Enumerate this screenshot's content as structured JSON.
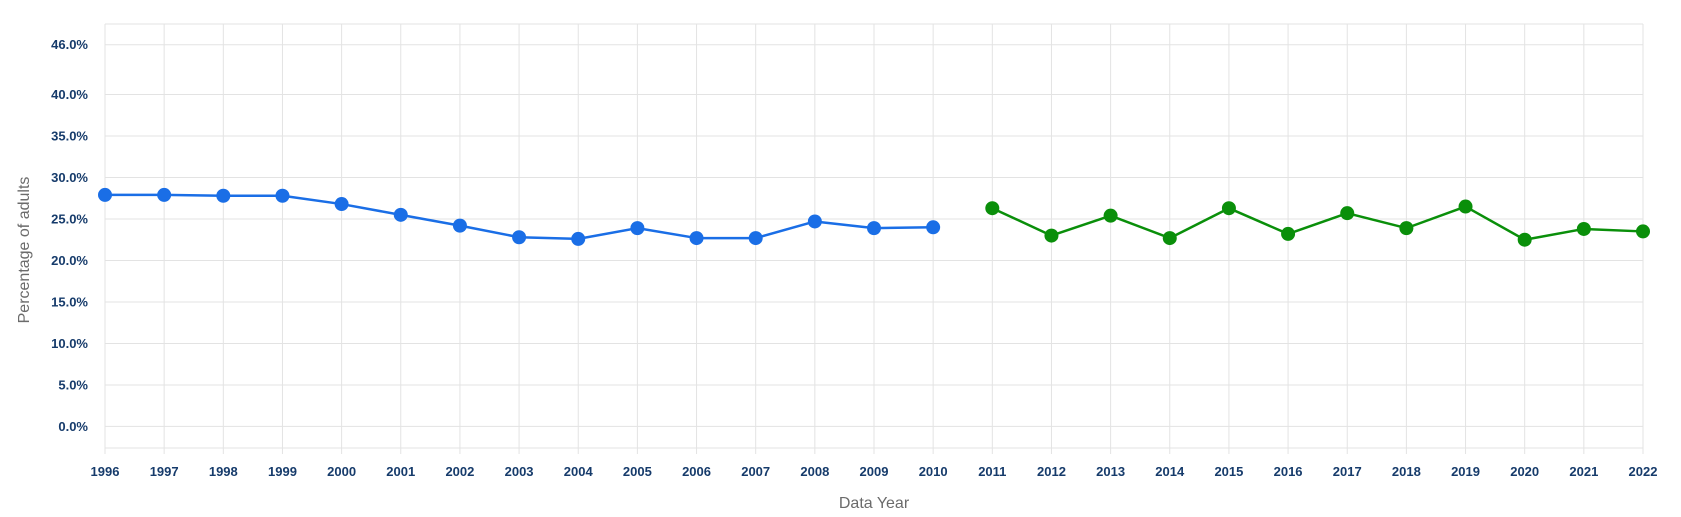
{
  "chart_data": {
    "type": "line",
    "xlabel": "Data Year",
    "ylabel": "Percentage of adults",
    "x": [
      "1996",
      "1997",
      "1998",
      "1999",
      "2000",
      "2001",
      "2002",
      "2003",
      "2004",
      "2005",
      "2006",
      "2007",
      "2008",
      "2009",
      "2010",
      "2011",
      "2012",
      "2013",
      "2014",
      "2015",
      "2016",
      "2017",
      "2018",
      "2019",
      "2020",
      "2021",
      "2022"
    ],
    "y_ticks": [
      {
        "value": 0,
        "label": "0.0%"
      },
      {
        "value": 5,
        "label": "5.0%"
      },
      {
        "value": 10,
        "label": "10.0%"
      },
      {
        "value": 15,
        "label": "15.0%"
      },
      {
        "value": 20,
        "label": "20.0%"
      },
      {
        "value": 25,
        "label": "25.0%"
      },
      {
        "value": 30,
        "label": "30.0%"
      },
      {
        "value": 35,
        "label": "35.0%"
      },
      {
        "value": 40,
        "label": "40.0%"
      },
      {
        "value": 46,
        "label": "46.0%"
      }
    ],
    "ylim": [
      -2.6,
      48.5
    ],
    "grid": true,
    "series": [
      {
        "color": "#1a6ee6",
        "x": [
          "1996",
          "1997",
          "1998",
          "1999",
          "2000",
          "2001",
          "2002",
          "2003",
          "2004",
          "2005",
          "2006",
          "2007",
          "2008",
          "2009",
          "2010"
        ],
        "values": [
          27.9,
          27.9,
          27.8,
          27.8,
          26.8,
          25.5,
          24.2,
          22.8,
          22.6,
          23.9,
          22.7,
          22.7,
          24.7,
          23.9,
          24.0
        ]
      },
      {
        "color": "#0a8f0a",
        "x": [
          "2011",
          "2012",
          "2013",
          "2014",
          "2015",
          "2016",
          "2017",
          "2018",
          "2019",
          "2020",
          "2021",
          "2022"
        ],
        "values": [
          26.3,
          23.0,
          25.4,
          22.7,
          26.3,
          23.2,
          25.7,
          23.9,
          26.5,
          22.5,
          23.8,
          23.5
        ]
      }
    ]
  }
}
